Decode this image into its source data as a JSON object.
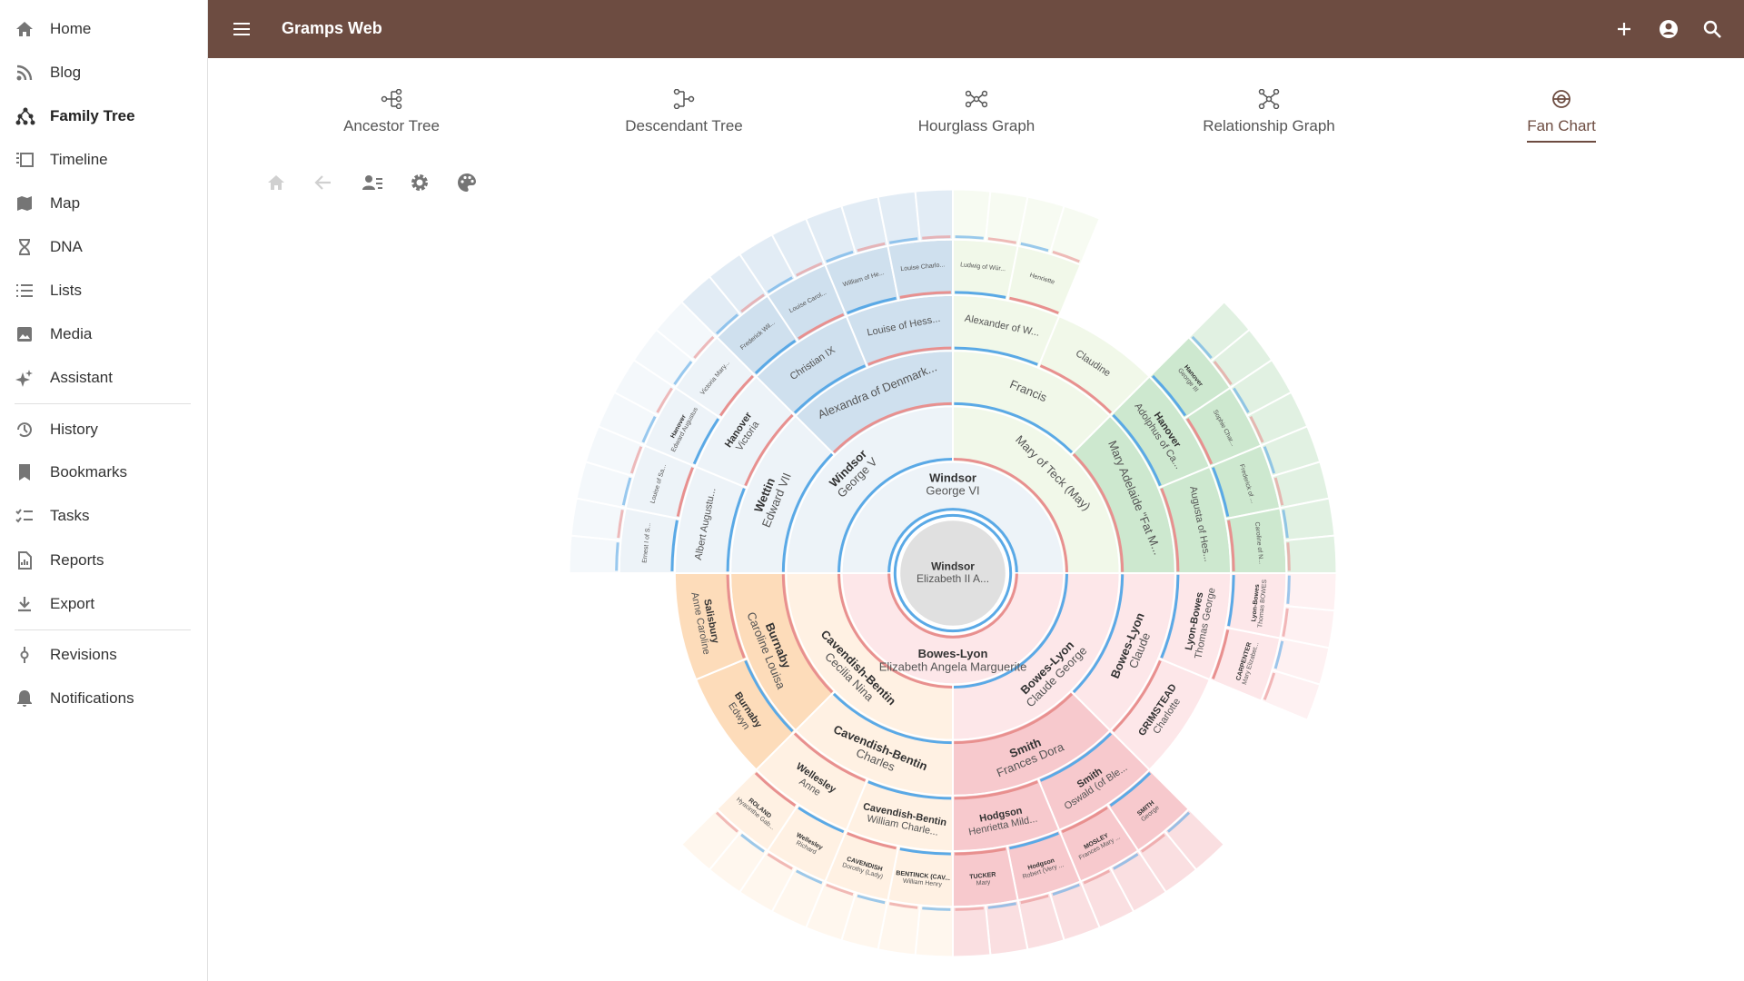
{
  "sidebar": {
    "main": [
      "Home",
      "Blog",
      "Family Tree",
      "Timeline",
      "Map",
      "DNA",
      "Lists",
      "Media",
      "Assistant"
    ],
    "secondary": [
      "History",
      "Bookmarks",
      "Tasks",
      "Reports",
      "Export"
    ],
    "tertiary": [
      "Revisions",
      "Notifications"
    ]
  },
  "app_bar": {
    "title": "Gramps Web"
  },
  "tabs": [
    "Ancestor Tree",
    "Descendant Tree",
    "Hourglass Graph",
    "Relationship Graph",
    "Fan Chart"
  ],
  "fan_chart": {
    "root": {
      "surname": "Windsor",
      "given": "Elizabeth II A...",
      "father": {
        "surname": "Windsor",
        "given": "George VI",
        "father": {
          "surname": "Windsor",
          "given": "George V",
          "father": {
            "surname": "Wettin",
            "given": "Edward VII",
            "father": {
              "given": "Albert Augustu...",
              "father": {
                "given": "Ernest I of S..."
              },
              "mother": {
                "given": "Louise of Sa..."
              }
            },
            "mother": {
              "surname": "Hanover",
              "given": "Victoria",
              "father": {
                "surname": "Hanover",
                "given": "Edward Augustus"
              },
              "mother": {
                "given": "Victoria Mary..."
              }
            }
          },
          "mother": {
            "given": "Alexandra of Denmark...",
            "father": {
              "given": "Christian IX",
              "father": {
                "given": "Frederick Wil..."
              },
              "mother": {
                "given": "Louise Carol..."
              }
            },
            "mother": {
              "given": "Louise of Hess...",
              "father": {
                "given": "William of He..."
              },
              "mother": {
                "given": "Louise Charlo..."
              }
            }
          }
        },
        "mother": {
          "given": "Mary of Teck (May)",
          "father": {
            "given": "Francis",
            "father": {
              "given": "Alexander of W...",
              "father": {
                "given": "Ludwig of Wür..."
              },
              "mother": {
                "given": "Henriette"
              }
            },
            "mother": {
              "given": "Claudine"
            }
          },
          "mother": {
            "given": "Mary Adelaide \"Fat M...",
            "father": {
              "surname": "Hanover",
              "given": "Adolphus of Ca...",
              "father": {
                "surname": "Hanover",
                "given": "George III"
              },
              "mother": {
                "given": "Sophie Char..."
              }
            },
            "mother": {
              "given": "Augusta of Hes...",
              "father": {
                "given": "Frederick of ..."
              },
              "mother": {
                "given": "Caroline of N..."
              }
            }
          }
        }
      },
      "mother": {
        "surname": "Bowes-Lyon",
        "given": "Elizabeth Angela Marguerite",
        "father": {
          "surname": "Bowes-Lyon",
          "given": "Claude George",
          "father": {
            "surname": "Bowes-Lyon",
            "given": "Claude",
            "father": {
              "surname": "Lyon-Bowes",
              "given": "Thomas George",
              "father": {
                "surname": "Lyon-Bowes",
                "given": "Thomas BOWES"
              },
              "mother": {
                "surname": "CARPENTER",
                "given": "Mary Elizabet..."
              }
            },
            "mother": {
              "surname": "GRIMSTEAD",
              "given": "Charlotte"
            }
          },
          "mother": {
            "surname": "Smith",
            "given": "Frances Dora",
            "father": {
              "surname": "Smith",
              "given": "Oswald (of Ble...",
              "father": {
                "surname": "SMITH",
                "given": "George"
              },
              "mother": {
                "surname": "MOSLEY",
                "given": "Frances Mary ..."
              }
            },
            "mother": {
              "surname": "Hodgson",
              "given": "Henrietta Mild...",
              "father": {
                "surname": "Hodgson",
                "given": "Robert (Very ..."
              },
              "mother": {
                "surname": "TUCKER",
                "given": "Mary"
              }
            }
          }
        },
        "mother": {
          "surname": "Cavendish-Bentin",
          "given": "Cecilia Nina",
          "father": {
            "surname": "Cavendish-Bentin",
            "given": "Charles",
            "father": {
              "surname": "Cavendish-Bentin",
              "given": "William Charle...",
              "father": {
                "surname": "BENTINCK (CAV...",
                "given": "William Henry"
              },
              "mother": {
                "surname": "CAVENDISH",
                "given": "Dorothy (Lady)"
              }
            },
            "mother": {
              "surname": "Wellesley",
              "given": "Anne",
              "father": {
                "surname": "Wellesley",
                "given": "Richard"
              },
              "mother": {
                "surname": "ROLAND",
                "given": "Hyacinthe Gab..."
              }
            }
          },
          "mother": {
            "surname": "Burnaby",
            "given": "Caroline Louisa",
            "father": {
              "surname": "Burnaby",
              "given": "Edwyn"
            },
            "mother": {
              "surname": "Salisbury",
              "given": "Anne Caroline"
            }
          }
        }
      }
    }
  }
}
